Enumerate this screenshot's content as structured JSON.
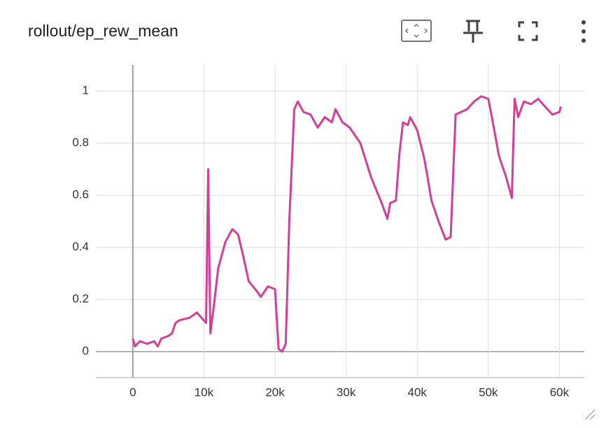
{
  "chart_data": {
    "type": "line",
    "title": "rollout/ep_rew_mean",
    "x": [
      0,
      300,
      1000,
      2000,
      3000,
      3500,
      4000,
      5000,
      5500,
      6000,
      6500,
      8000,
      9000,
      10000,
      10300,
      10600,
      10900,
      11500,
      12000,
      13000,
      14000,
      14800,
      15500,
      16300,
      17500,
      18000,
      19000,
      20000,
      20500,
      21000,
      21500,
      22000,
      22700,
      23200,
      24000,
      25000,
      26000,
      27000,
      28000,
      28500,
      29500,
      30500,
      32000,
      33500,
      35000,
      35800,
      36200,
      37000,
      37500,
      38000,
      38700,
      39000,
      40000,
      41000,
      42000,
      43000,
      44000,
      44700,
      45400,
      47000,
      48000,
      49000,
      50000,
      50500,
      51500,
      52500,
      53300,
      53700,
      54200,
      55000,
      56000,
      57000,
      58000,
      59000,
      60000,
      60200
    ],
    "series": [
      {
        "name": "ep_rew_mean",
        "color": "#d63d98",
        "values": [
          0.05,
          0.02,
          0.04,
          0.03,
          0.04,
          0.02,
          0.05,
          0.06,
          0.07,
          0.11,
          0.12,
          0.13,
          0.15,
          0.12,
          0.11,
          0.7,
          0.07,
          0.2,
          0.32,
          0.42,
          0.47,
          0.45,
          0.37,
          0.27,
          0.23,
          0.21,
          0.25,
          0.24,
          0.01,
          0.0,
          0.03,
          0.5,
          0.93,
          0.96,
          0.92,
          0.91,
          0.86,
          0.9,
          0.88,
          0.93,
          0.88,
          0.86,
          0.8,
          0.67,
          0.57,
          0.51,
          0.57,
          0.58,
          0.76,
          0.88,
          0.87,
          0.9,
          0.85,
          0.74,
          0.58,
          0.5,
          0.43,
          0.44,
          0.91,
          0.93,
          0.96,
          0.98,
          0.97,
          0.9,
          0.75,
          0.67,
          0.59,
          0.97,
          0.9,
          0.96,
          0.95,
          0.97,
          0.94,
          0.91,
          0.92,
          0.94
        ]
      }
    ],
    "xlim": [
      -5200,
      63500
    ],
    "xticks": [
      0,
      {
        "value": 10000,
        "label": "10k"
      },
      {
        "value": 20000,
        "label": "20k"
      },
      {
        "value": 30000,
        "label": "30k"
      },
      {
        "value": 40000,
        "label": "40k"
      },
      {
        "value": 50000,
        "label": "50k"
      },
      {
        "value": 60000,
        "label": "60k"
      }
    ],
    "ylim": [
      -0.1,
      1.1
    ],
    "yticks": [
      0,
      0.2,
      0.4,
      0.6,
      0.8,
      1
    ],
    "grid": true
  }
}
